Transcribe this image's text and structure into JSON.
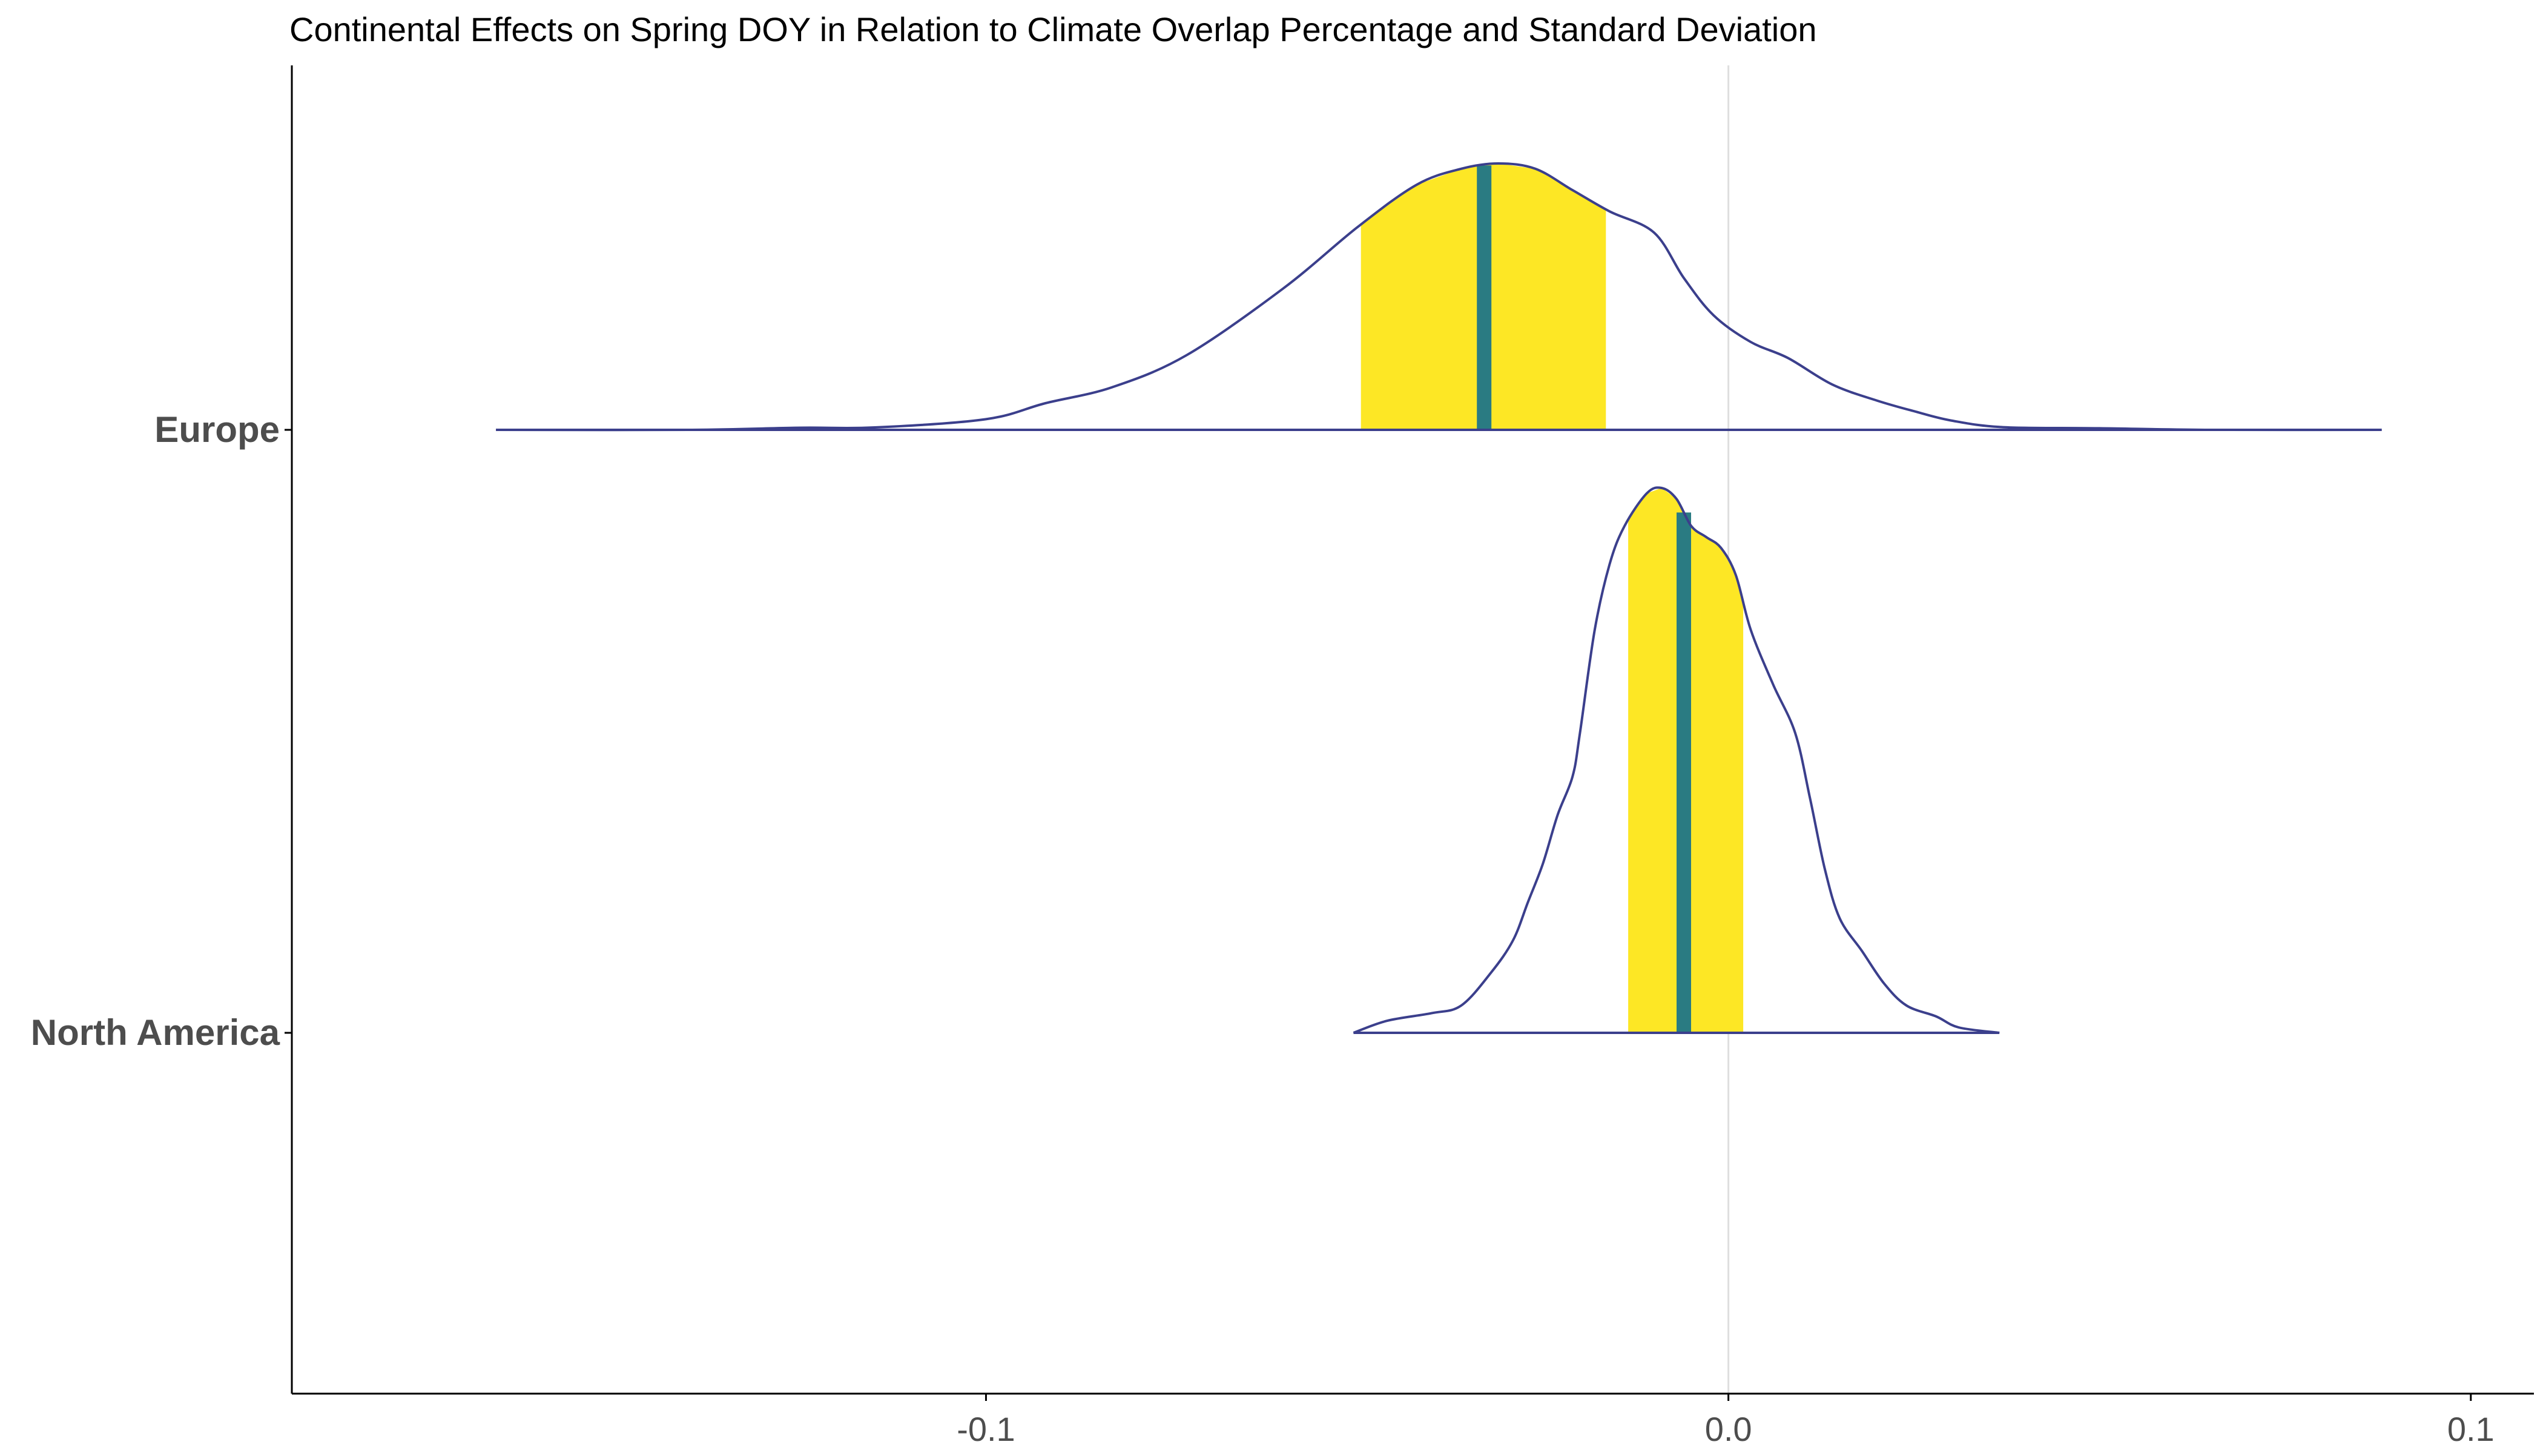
{
  "chart_data": {
    "type": "ridgeline",
    "title": "Continental Effects on Spring DOY in Relation to Climate Overlap Percentage and Standard Deviation",
    "xlabel": "",
    "ylabel": "",
    "xlim": [
      -0.1935,
      0.1085
    ],
    "x_ticks": [
      {
        "value": -0.1,
        "label": "-0.1"
      },
      {
        "value": 0.0,
        "label": "0.0"
      },
      {
        "value": 0.1,
        "label": "0.1"
      }
    ],
    "reference_line_x": 0.0,
    "grid": false,
    "legend": "none",
    "colors": {
      "outline": "#3b3f8c",
      "interval_fill": "#fde725",
      "median_line": "#2a7b82",
      "axis": "#000000",
      "zero_line": "#dedede"
    },
    "series": [
      {
        "name": "Europe",
        "range": [
          -0.166,
          0.088
        ],
        "median": -0.0329,
        "interval": [
          -0.0495,
          -0.0165
        ],
        "density": [
          [
            -0.166,
            0.0
          ],
          [
            -0.14,
            0.0
          ],
          [
            -0.125,
            0.008
          ],
          [
            -0.115,
            0.009
          ],
          [
            -0.1,
            0.04
          ],
          [
            -0.092,
            0.1
          ],
          [
            -0.083,
            0.16
          ],
          [
            -0.073,
            0.28
          ],
          [
            -0.06,
            0.53
          ],
          [
            -0.05,
            0.76
          ],
          [
            -0.042,
            0.92
          ],
          [
            -0.036,
            0.98
          ],
          [
            -0.031,
            1.0
          ],
          [
            -0.026,
            0.98
          ],
          [
            -0.021,
            0.9
          ],
          [
            -0.016,
            0.82
          ],
          [
            -0.01,
            0.74
          ],
          [
            -0.006,
            0.57
          ],
          [
            -0.002,
            0.43
          ],
          [
            0.003,
            0.33
          ],
          [
            0.008,
            0.27
          ],
          [
            0.014,
            0.17
          ],
          [
            0.02,
            0.11
          ],
          [
            0.025,
            0.07
          ],
          [
            0.03,
            0.035
          ],
          [
            0.037,
            0.01
          ],
          [
            0.05,
            0.006
          ],
          [
            0.065,
            0.0
          ],
          [
            0.088,
            0.0
          ]
        ]
      },
      {
        "name": "North America",
        "range": [
          -0.0505,
          0.0365
        ],
        "median": -0.006,
        "interval": [
          -0.0135,
          0.002
        ],
        "density": [
          [
            -0.0505,
            0.0
          ],
          [
            -0.046,
            0.022
          ],
          [
            -0.04,
            0.036
          ],
          [
            -0.036,
            0.05
          ],
          [
            -0.032,
            0.11
          ],
          [
            -0.029,
            0.17
          ],
          [
            -0.027,
            0.24
          ],
          [
            -0.025,
            0.31
          ],
          [
            -0.023,
            0.4
          ],
          [
            -0.021,
            0.47
          ],
          [
            -0.02,
            0.55
          ],
          [
            -0.018,
            0.74
          ],
          [
            -0.016,
            0.86
          ],
          [
            -0.014,
            0.93
          ],
          [
            -0.011,
            0.99
          ],
          [
            -0.009,
            1.0
          ],
          [
            -0.007,
            0.98
          ],
          [
            -0.005,
            0.93
          ],
          [
            -0.003,
            0.91
          ],
          [
            -0.001,
            0.89
          ],
          [
            0.001,
            0.84
          ],
          [
            0.003,
            0.74
          ],
          [
            0.006,
            0.64
          ],
          [
            0.009,
            0.55
          ],
          [
            0.011,
            0.43
          ],
          [
            0.013,
            0.3
          ],
          [
            0.015,
            0.21
          ],
          [
            0.018,
            0.15
          ],
          [
            0.021,
            0.09
          ],
          [
            0.024,
            0.05
          ],
          [
            0.028,
            0.03
          ],
          [
            0.031,
            0.01
          ],
          [
            0.0365,
            0.0
          ]
        ]
      }
    ]
  }
}
